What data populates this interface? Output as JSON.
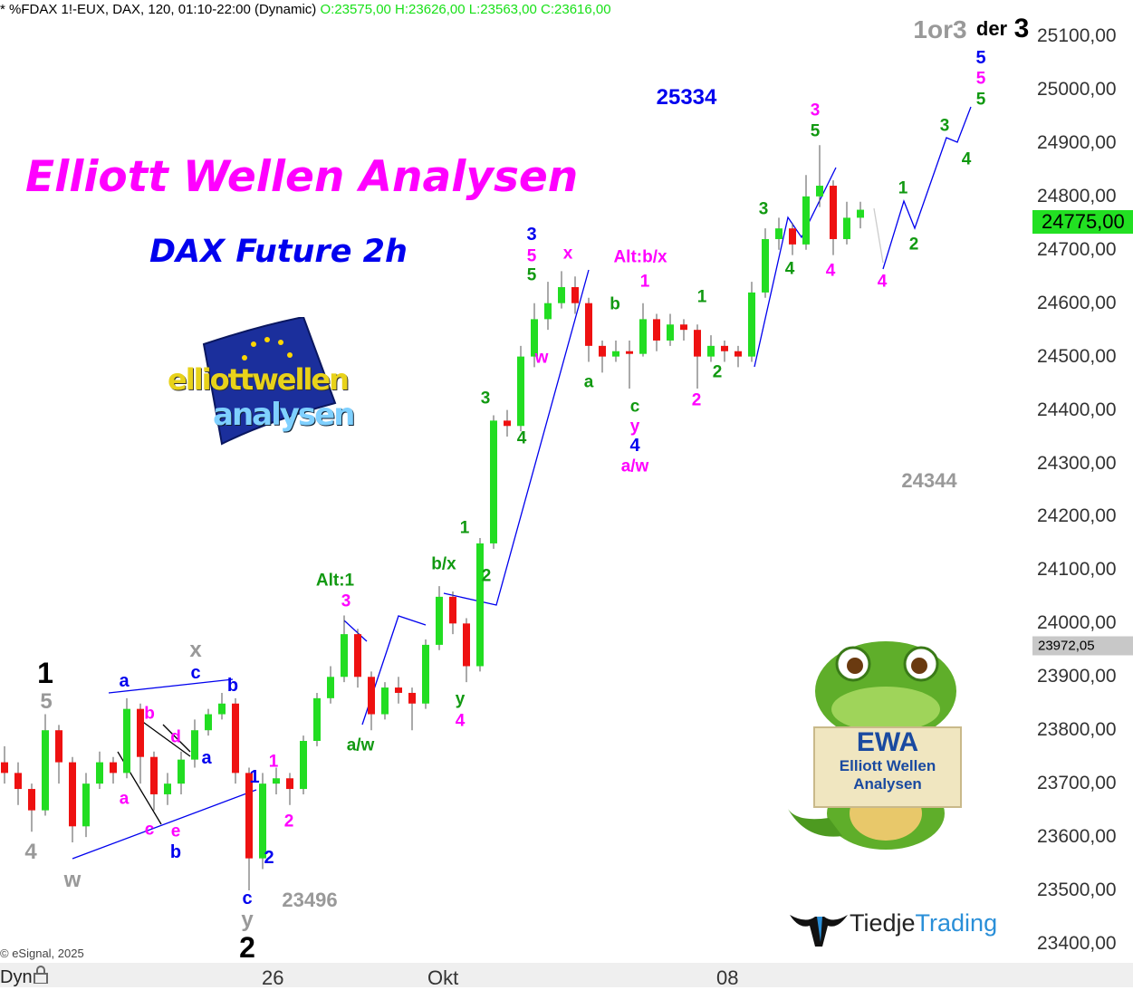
{
  "header": {
    "symbol_info": "* %FDAX 1!-EUX, DAX, 120, 01:10-22:00 (Dynamic)",
    "ohlc": "O:23575,00 H:23626,00 L:23563,00 C:23616,00"
  },
  "title": "Elliott Wellen Analysen",
  "subtitle": "DAX Future 2h",
  "copyright": "© eSignal, 2025",
  "bottom_bar": {
    "mode": "Dyn",
    "lock_icon": "lock-icon"
  },
  "price_tags": {
    "last": "24775,00",
    "last_color": "#22e022",
    "cursor": "23972,05",
    "cursor_color": "#c8c8c8"
  },
  "logos": {
    "ewa_logo_text": [
      "elliott",
      "wellen",
      "analysen"
    ],
    "mascot_sign": [
      "EWA",
      "Elliott Wellen",
      "Analysen"
    ],
    "brand": {
      "part1": "Tiedje",
      "part2": "Trading"
    }
  },
  "colors": {
    "up": "#22dd22",
    "down": "#ee1111",
    "black": "#000000",
    "gray": "#999999",
    "blue": "#0000ee",
    "magenta": "#ff00ff",
    "green": "#119911"
  },
  "annotations": [
    {
      "text": "1",
      "color": "#000000"
    },
    {
      "text": "2",
      "color": "#000000"
    },
    {
      "text": "5",
      "color": "#999999"
    },
    {
      "text": "4",
      "color": "#999999"
    },
    {
      "text": "w",
      "color": "#999999"
    },
    {
      "text": "x",
      "color": "#999999"
    },
    {
      "text": "y",
      "color": "#999999"
    },
    {
      "text": "23496",
      "color": "#999999"
    },
    {
      "text": "24344",
      "color": "#999999"
    },
    {
      "text": "1or3",
      "color": "#999999"
    },
    {
      "text": "der",
      "color": "#000000"
    },
    {
      "text": "3",
      "color": "#000000"
    },
    {
      "text": "a",
      "color": "#0000ee"
    },
    {
      "text": "c",
      "color": "#0000ee"
    },
    {
      "text": "b",
      "color": "#0000ee"
    },
    {
      "text": "a",
      "color": "#0000ee"
    },
    {
      "text": "b",
      "color": "#0000ee"
    },
    {
      "text": "1",
      "color": "#0000ee"
    },
    {
      "text": "2",
      "color": "#0000ee"
    },
    {
      "text": "c",
      "color": "#0000ee"
    },
    {
      "text": "25334",
      "color": "#0000ee"
    },
    {
      "text": "3",
      "color": "#0000ee"
    },
    {
      "text": "4",
      "color": "#0000ee"
    },
    {
      "text": "5",
      "color": "#0000ee"
    },
    {
      "text": "b",
      "color": "#ff00ff"
    },
    {
      "text": "d",
      "color": "#ff00ff"
    },
    {
      "text": "a",
      "color": "#ff00ff"
    },
    {
      "text": "c",
      "color": "#ff00ff"
    },
    {
      "text": "e",
      "color": "#ff00ff"
    },
    {
      "text": "1",
      "color": "#ff00ff"
    },
    {
      "text": "2",
      "color": "#ff00ff"
    },
    {
      "text": "3",
      "color": "#ff00ff"
    },
    {
      "text": "4",
      "color": "#ff00ff"
    },
    {
      "text": "5",
      "color": "#ff00ff"
    },
    {
      "text": "x",
      "color": "#ff00ff"
    },
    {
      "text": "w",
      "color": "#ff00ff"
    },
    {
      "text": "Alt:b/x",
      "color": "#ff00ff"
    },
    {
      "text": "1",
      "color": "#ff00ff"
    },
    {
      "text": "y",
      "color": "#ff00ff"
    },
    {
      "text": "a/w",
      "color": "#ff00ff"
    },
    {
      "text": "2",
      "color": "#ff00ff"
    },
    {
      "text": "3",
      "color": "#ff00ff"
    },
    {
      "text": "4",
      "color": "#ff00ff"
    },
    {
      "text": "4",
      "color": "#ff00ff"
    },
    {
      "text": "5",
      "color": "#ff00ff"
    },
    {
      "text": "Alt:1",
      "color": "#119911"
    },
    {
      "text": "a/w",
      "color": "#119911"
    },
    {
      "text": "b/x",
      "color": "#119911"
    },
    {
      "text": "y",
      "color": "#119911"
    },
    {
      "text": "1",
      "color": "#119911"
    },
    {
      "text": "2",
      "color": "#119911"
    },
    {
      "text": "3",
      "color": "#119911"
    },
    {
      "text": "4",
      "color": "#119911"
    },
    {
      "text": "5",
      "color": "#119911"
    },
    {
      "text": "b",
      "color": "#119911"
    },
    {
      "text": "a",
      "color": "#119911"
    },
    {
      "text": "c",
      "color": "#119911"
    },
    {
      "text": "1",
      "color": "#119911"
    },
    {
      "text": "2",
      "color": "#119911"
    },
    {
      "text": "3",
      "color": "#119911"
    },
    {
      "text": "4",
      "color": "#119911"
    },
    {
      "text": "5",
      "color": "#119911"
    },
    {
      "text": "1",
      "color": "#119911"
    },
    {
      "text": "2",
      "color": "#119911"
    },
    {
      "text": "3",
      "color": "#119911"
    },
    {
      "text": "4",
      "color": "#119911"
    },
    {
      "text": "5",
      "color": "#119911"
    }
  ],
  "chart_data": {
    "type": "candlestick",
    "title": "",
    "ylim": [
      23380,
      25130
    ],
    "y_ticks": [
      "25100,00",
      "25000,00",
      "24900,00",
      "24800,00",
      "24700,00",
      "24600,00",
      "24500,00",
      "24400,00",
      "24300,00",
      "24200,00",
      "24100,00",
      "24000,00",
      "23900,00",
      "23800,00",
      "23700,00",
      "23600,00",
      "23500,00",
      "23400,00"
    ],
    "x_ticks": [
      "26",
      "Okt",
      "08"
    ],
    "grid": false,
    "candles_ohlc": [
      [
        23740,
        23770,
        23700,
        23720
      ],
      [
        23720,
        23740,
        23660,
        23690
      ],
      [
        23690,
        23700,
        23610,
        23650
      ],
      [
        23650,
        23830,
        23640,
        23800
      ],
      [
        23800,
        23810,
        23700,
        23740
      ],
      [
        23740,
        23750,
        23590,
        23620
      ],
      [
        23620,
        23720,
        23600,
        23700
      ],
      [
        23700,
        23760,
        23690,
        23740
      ],
      [
        23740,
        23750,
        23700,
        23720
      ],
      [
        23720,
        23860,
        23710,
        23840
      ],
      [
        23840,
        23850,
        23700,
        23750
      ],
      [
        23750,
        23760,
        23650,
        23680
      ],
      [
        23680,
        23720,
        23660,
        23700
      ],
      [
        23700,
        23760,
        23680,
        23745
      ],
      [
        23745,
        23820,
        23730,
        23800
      ],
      [
        23800,
        23840,
        23790,
        23830
      ],
      [
        23830,
        23870,
        23820,
        23850
      ],
      [
        23850,
        23860,
        23700,
        23720
      ],
      [
        23720,
        23730,
        23500,
        23560
      ],
      [
        23560,
        23720,
        23540,
        23700
      ],
      [
        23700,
        23730,
        23680,
        23710
      ],
      [
        23710,
        23720,
        23660,
        23690
      ],
      [
        23690,
        23790,
        23680,
        23780
      ],
      [
        23780,
        23870,
        23770,
        23860
      ],
      [
        23860,
        23920,
        23850,
        23900
      ],
      [
        23900,
        24015,
        23890,
        23980
      ],
      [
        23980,
        23990,
        23880,
        23900
      ],
      [
        23900,
        23910,
        23800,
        23830
      ],
      [
        23830,
        23890,
        23820,
        23880
      ],
      [
        23880,
        23900,
        23850,
        23870
      ],
      [
        23870,
        23880,
        23800,
        23850
      ],
      [
        23850,
        23970,
        23840,
        23960
      ],
      [
        23960,
        24070,
        23950,
        24050
      ],
      [
        24050,
        24060,
        23980,
        24000
      ],
      [
        24000,
        24010,
        23890,
        23920
      ],
      [
        23920,
        24160,
        23910,
        24150
      ],
      [
        24150,
        24390,
        24140,
        24380
      ],
      [
        24380,
        24400,
        24350,
        24370
      ],
      [
        24370,
        24520,
        24360,
        24500
      ],
      [
        24500,
        24600,
        24480,
        24570
      ],
      [
        24570,
        24640,
        24550,
        24600
      ],
      [
        24600,
        24660,
        24590,
        24630
      ],
      [
        24630,
        24650,
        24580,
        24600
      ],
      [
        24600,
        24610,
        24490,
        24520
      ],
      [
        24520,
        24530,
        24470,
        24500
      ],
      [
        24500,
        24530,
        24490,
        24510
      ],
      [
        24510,
        24530,
        24440,
        24505
      ],
      [
        24505,
        24600,
        24500,
        24570
      ],
      [
        24570,
        24580,
        24510,
        24530
      ],
      [
        24530,
        24580,
        24520,
        24560
      ],
      [
        24560,
        24570,
        24530,
        24550
      ],
      [
        24550,
        24560,
        24440,
        24500
      ],
      [
        24500,
        24540,
        24490,
        24520
      ],
      [
        24520,
        24530,
        24490,
        24510
      ],
      [
        24510,
        24520,
        24480,
        24500
      ],
      [
        24500,
        24640,
        24490,
        24620
      ],
      [
        24620,
        24740,
        24610,
        24720
      ],
      [
        24720,
        24760,
        24700,
        24740
      ],
      [
        24740,
        24750,
        24690,
        24710
      ],
      [
        24710,
        24840,
        24700,
        24800
      ],
      [
        24800,
        24896,
        24780,
        24820
      ],
      [
        24820,
        24830,
        24690,
        24720
      ],
      [
        24720,
        24790,
        24710,
        24760
      ],
      [
        24760,
        24790,
        24740,
        24775
      ]
    ]
  }
}
